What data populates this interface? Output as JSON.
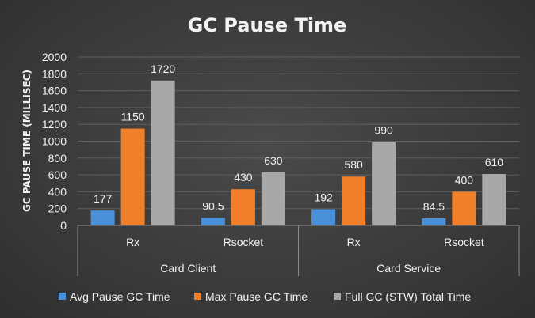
{
  "chart_data": {
    "type": "bar",
    "title": "GC Pause Time",
    "ylabel": "GC PAUSE TIME (MILLISEC)",
    "xlabel": "",
    "ylim": [
      0,
      2000
    ],
    "yticks": [
      0,
      200,
      400,
      600,
      800,
      1000,
      1200,
      1400,
      1600,
      1800,
      2000
    ],
    "grid": true,
    "legend_position": "bottom",
    "groups": [
      {
        "label": "Card Client",
        "categories": [
          "Rx",
          "Rsocket"
        ]
      },
      {
        "label": "Card Service",
        "categories": [
          "Rx",
          "Rsocket"
        ]
      }
    ],
    "categories": [
      "Rx",
      "Rsocket",
      "Rx",
      "Rsocket"
    ],
    "series": [
      {
        "name": "Avg Pause GC Time",
        "color": "#4a90d9",
        "values": [
          177,
          90.5,
          192,
          84.5
        ],
        "labels": [
          "177",
          "90.5",
          "192",
          "84.5"
        ]
      },
      {
        "name": "Max Pause GC Time",
        "color": "#f07f2a",
        "values": [
          1150,
          430,
          580,
          400
        ],
        "labels": [
          "1150",
          "430",
          "580",
          "400"
        ]
      },
      {
        "name": "Full GC (STW) Total Time",
        "color": "#a8a8a8",
        "values": [
          1720,
          630,
          990,
          610
        ],
        "labels": [
          "1720",
          "630",
          "990",
          "610"
        ]
      }
    ]
  }
}
